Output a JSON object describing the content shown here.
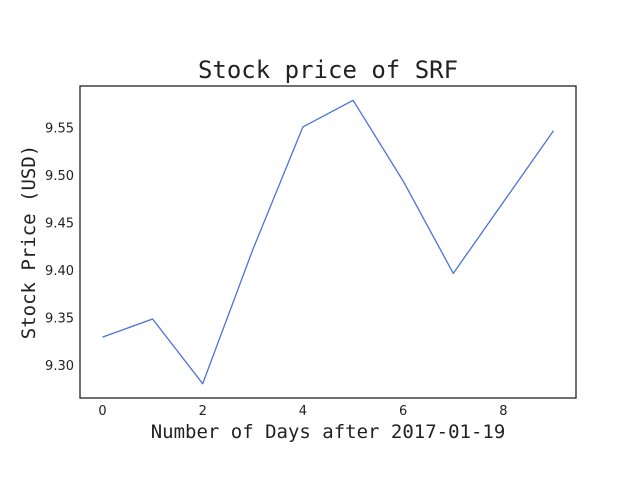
{
  "chart_data": {
    "type": "line",
    "title": "Stock price of SRF",
    "xlabel": "Number of Days after 2017-01-19",
    "ylabel": "Stock Price (USD)",
    "x": [
      0,
      1,
      2,
      3,
      4,
      5,
      6,
      7,
      8,
      9
    ],
    "series": [
      {
        "values": [
          9.33,
          9.349,
          9.281,
          9.422,
          9.551,
          9.579,
          9.494,
          9.397,
          9.472,
          9.547
        ]
      }
    ],
    "xlim": [
      -0.45,
      9.45
    ],
    "ylim": [
      9.266,
      9.594
    ],
    "xticks": [
      0,
      2,
      4,
      6,
      8
    ],
    "yticks": [
      "9.30",
      "9.35",
      "9.40",
      "9.45",
      "9.50",
      "9.55"
    ],
    "grid": false,
    "line_color": "#4c72d8"
  }
}
